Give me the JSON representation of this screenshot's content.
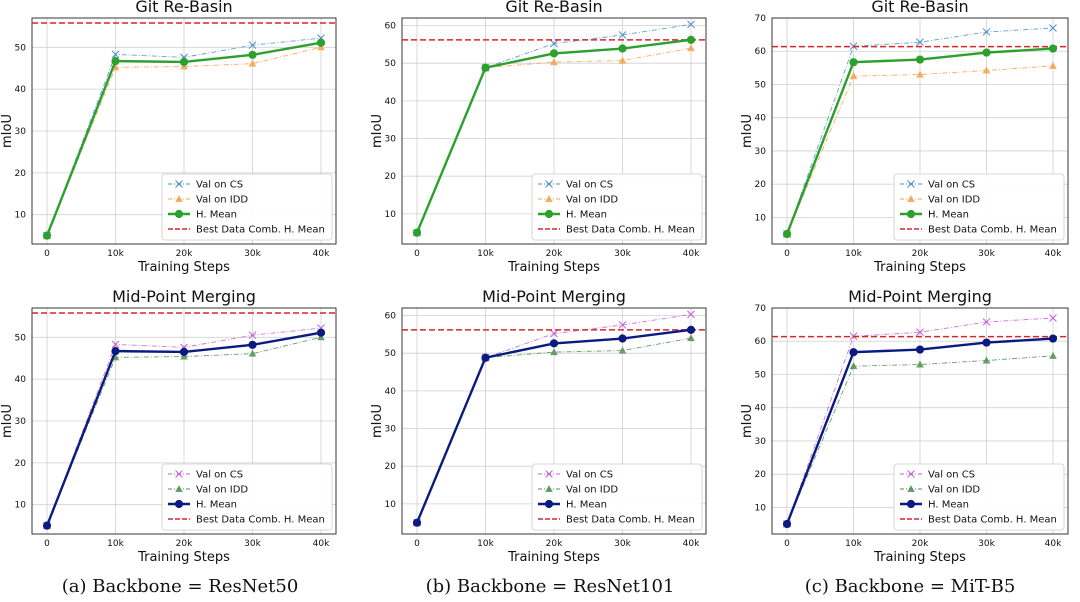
{
  "captions": [
    "(a) Backbone = ResNet50",
    "(b) Backbone = ResNet101",
    "(c) Backbone = MiT-B5"
  ],
  "colors": {
    "cs_rebasin": "#4c8fc8",
    "idd_rebasin": "#f5a04a",
    "hmean_rebasin": "#2ca02c",
    "cs_midpoint": "#c060d8",
    "idd_midpoint": "#4f8f4f",
    "hmean_midpoint": "#0a1a80",
    "best": "#d62728"
  },
  "chart_data": [
    {
      "type": "line",
      "title": "Git Re-Basin",
      "xlabel": "Training Steps",
      "ylabel": "mIoU",
      "categories": [
        "0",
        "10k",
        "20k",
        "30k",
        "40k"
      ],
      "ylim": [
        3,
        57
      ],
      "yticks": [
        10,
        20,
        30,
        40,
        50
      ],
      "grid": true,
      "legend_position": "lower right",
      "series": [
        {
          "name": "Val on CS",
          "marker": "x",
          "style": "dashdot",
          "values": [
            5,
            48.3,
            47.6,
            50.5,
            52.2
          ]
        },
        {
          "name": "Val on IDD",
          "marker": "triangle",
          "style": "dashdot",
          "values": [
            5,
            45.2,
            45.4,
            46.1,
            50.0
          ]
        },
        {
          "name": "H. Mean",
          "marker": "circle",
          "style": "solid",
          "values": [
            5,
            46.7,
            46.5,
            48.2,
            51.1
          ]
        },
        {
          "name": "Best Data Comb. H. Mean",
          "marker": "none",
          "style": "dashed",
          "values": [
            55.8,
            55.8,
            55.8,
            55.8,
            55.8
          ]
        }
      ]
    },
    {
      "type": "line",
      "title": "Git Re-Basin",
      "xlabel": "Training Steps",
      "ylabel": "mIoU",
      "categories": [
        "0",
        "10k",
        "20k",
        "30k",
        "40k"
      ],
      "ylim": [
        2,
        62
      ],
      "yticks": [
        10,
        20,
        30,
        40,
        50,
        60
      ],
      "grid": true,
      "legend_position": "lower right",
      "series": [
        {
          "name": "Val on CS",
          "marker": "x",
          "style": "dashdot",
          "values": [
            5,
            48.8,
            55.2,
            57.5,
            60.3
          ]
        },
        {
          "name": "Val on IDD",
          "marker": "triangle",
          "style": "dashdot",
          "values": [
            5,
            48.8,
            50.3,
            50.7,
            54.0
          ]
        },
        {
          "name": "H. Mean",
          "marker": "circle",
          "style": "solid",
          "values": [
            5,
            48.8,
            52.6,
            53.9,
            56.2
          ]
        },
        {
          "name": "Best Data Comb. H. Mean",
          "marker": "none",
          "style": "dashed",
          "values": [
            56.2,
            56.2,
            56.2,
            56.2,
            56.2
          ]
        }
      ]
    },
    {
      "type": "line",
      "title": "Git Re-Basin",
      "xlabel": "Training Steps",
      "ylabel": "mIoU",
      "categories": [
        "0",
        "10k",
        "20k",
        "30k",
        "40k"
      ],
      "ylim": [
        2,
        70
      ],
      "yticks": [
        10,
        20,
        30,
        40,
        50,
        60,
        70
      ],
      "grid": true,
      "legend_position": "lower right",
      "series": [
        {
          "name": "Val on CS",
          "marker": "x",
          "style": "dashdot",
          "values": [
            5,
            61.5,
            62.7,
            65.8,
            67.0
          ]
        },
        {
          "name": "Val on IDD",
          "marker": "triangle",
          "style": "dashdot",
          "values": [
            5,
            52.5,
            53.0,
            54.2,
            55.6
          ]
        },
        {
          "name": "H. Mean",
          "marker": "circle",
          "style": "solid",
          "values": [
            5,
            56.7,
            57.5,
            59.6,
            60.8
          ]
        },
        {
          "name": "Best Data Comb. H. Mean",
          "marker": "none",
          "style": "dashed",
          "values": [
            61.4,
            61.4,
            61.4,
            61.4,
            61.4
          ]
        }
      ]
    },
    {
      "type": "line",
      "title": "Mid-Point Merging",
      "xlabel": "Training Steps",
      "ylabel": "mIoU",
      "categories": [
        "0",
        "10k",
        "20k",
        "30k",
        "40k"
      ],
      "ylim": [
        3,
        57
      ],
      "yticks": [
        10,
        20,
        30,
        40,
        50
      ],
      "grid": true,
      "legend_position": "lower right",
      "series": [
        {
          "name": "Val on CS",
          "marker": "x",
          "style": "dashdot",
          "values": [
            5,
            48.3,
            47.6,
            50.5,
            52.2
          ]
        },
        {
          "name": "Val on IDD",
          "marker": "triangle",
          "style": "dashdot",
          "values": [
            5,
            45.2,
            45.4,
            46.1,
            50.0
          ]
        },
        {
          "name": "H. Mean",
          "marker": "circle",
          "style": "solid",
          "values": [
            5,
            46.7,
            46.5,
            48.2,
            51.1
          ]
        },
        {
          "name": "Best Data Comb. H. Mean",
          "marker": "none",
          "style": "dashed",
          "values": [
            55.8,
            55.8,
            55.8,
            55.8,
            55.8
          ]
        }
      ]
    },
    {
      "type": "line",
      "title": "Mid-Point Merging",
      "xlabel": "Training Steps",
      "ylabel": "mIoU",
      "categories": [
        "0",
        "10k",
        "20k",
        "30k",
        "40k"
      ],
      "ylim": [
        2,
        62
      ],
      "yticks": [
        10,
        20,
        30,
        40,
        50,
        60
      ],
      "grid": true,
      "legend_position": "lower right",
      "series": [
        {
          "name": "Val on CS",
          "marker": "x",
          "style": "dashdot",
          "values": [
            5,
            48.8,
            55.2,
            57.5,
            60.3
          ]
        },
        {
          "name": "Val on IDD",
          "marker": "triangle",
          "style": "dashdot",
          "values": [
            5,
            48.8,
            50.3,
            50.7,
            54.0
          ]
        },
        {
          "name": "H. Mean",
          "marker": "circle",
          "style": "solid",
          "values": [
            5,
            48.8,
            52.6,
            53.9,
            56.2
          ]
        },
        {
          "name": "Best Data Comb. H. Mean",
          "marker": "none",
          "style": "dashed",
          "values": [
            56.2,
            56.2,
            56.2,
            56.2,
            56.2
          ]
        }
      ]
    },
    {
      "type": "line",
      "title": "Mid-Point Merging",
      "xlabel": "Training Steps",
      "ylabel": "mIoU",
      "categories": [
        "0",
        "10k",
        "20k",
        "30k",
        "40k"
      ],
      "ylim": [
        2,
        70
      ],
      "yticks": [
        10,
        20,
        30,
        40,
        50,
        60,
        70
      ],
      "grid": true,
      "legend_position": "lower right",
      "series": [
        {
          "name": "Val on CS",
          "marker": "x",
          "style": "dashdot",
          "values": [
            5,
            61.5,
            62.7,
            65.8,
            67.0
          ]
        },
        {
          "name": "Val on IDD",
          "marker": "triangle",
          "style": "dashdot",
          "values": [
            5,
            52.5,
            53.0,
            54.2,
            55.6
          ]
        },
        {
          "name": "H. Mean",
          "marker": "circle",
          "style": "solid",
          "values": [
            5,
            56.7,
            57.5,
            59.6,
            60.8
          ]
        },
        {
          "name": "Best Data Comb. H. Mean",
          "marker": "none",
          "style": "dashed",
          "values": [
            61.4,
            61.4,
            61.4,
            61.4,
            61.4
          ]
        }
      ]
    }
  ]
}
